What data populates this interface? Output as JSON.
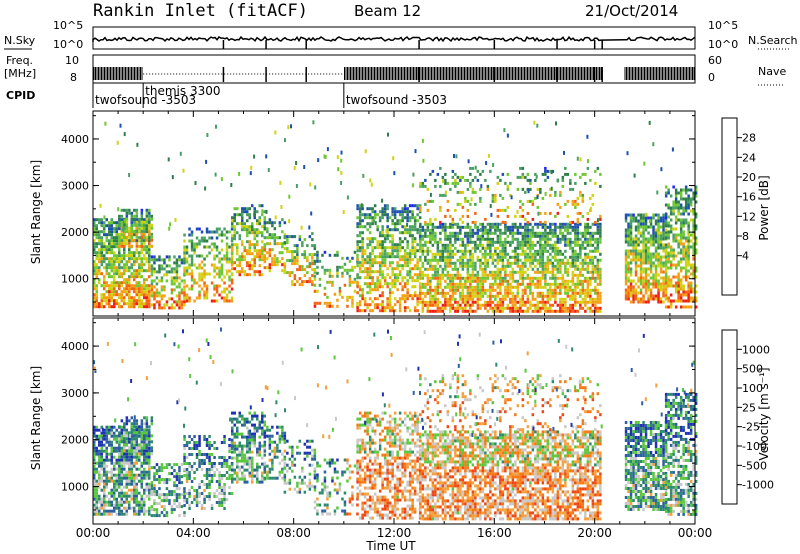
{
  "header": {
    "station": "Rankin Inlet (fitACF)",
    "beam": "Beam 12",
    "date": "21/Oct/2014"
  },
  "status_panel": {
    "nsky_label": "N.Sky",
    "nsky_ticks": [
      "10^5",
      "10^0"
    ],
    "nsearch_label": "N.Search",
    "nsearch_ticks": [
      "10^5",
      "10^0"
    ],
    "freq_label": "Freq.",
    "freq_unit": "[MHz]",
    "freq_ticks": [
      "10",
      "8"
    ],
    "nave_label": "Nave",
    "nave_ticks": [
      "60",
      "0"
    ],
    "cpid_label": "CPID",
    "cpid_segments": [
      {
        "name": "twofsound -3503",
        "start": 0.0,
        "end": 2.0
      },
      {
        "name": "themis 3300",
        "start": 2.0,
        "end": 10.0
      },
      {
        "name": "twofsound -3503",
        "start": 10.0,
        "end": 24.0
      }
    ],
    "data_gap": [
      20.3,
      21.2
    ]
  },
  "chart_data": [
    {
      "type": "heatmap",
      "name": "power",
      "ylabel": "Slant Range [km]",
      "yticks": [
        1000,
        2000,
        3000,
        4000
      ],
      "ylim": [
        200,
        4600
      ],
      "xlim": [
        0,
        24
      ],
      "colorbar_label": "Power [dB]",
      "colorbar_ticks": [
        "28",
        "24",
        "20",
        "16",
        "12",
        "8",
        "4"
      ],
      "colorbar_levels": [
        0,
        4,
        8,
        12,
        16,
        20,
        24,
        28,
        32
      ],
      "colorbar_colors": [
        "#1e28f0",
        "#1e50b4",
        "#2e7d4a",
        "#4aa064",
        "#6ec832",
        "#d2d214",
        "#f5a014",
        "#f56414",
        "#f01e14"
      ]
    },
    {
      "type": "heatmap",
      "name": "velocity",
      "ylabel": "Slant Range [km]",
      "yticks": [
        1000,
        2000,
        3000,
        4000
      ],
      "ylim": [
        200,
        4600
      ],
      "xlim": [
        0,
        24
      ],
      "xlabel": "Time UT",
      "xticks": [
        "00:00",
        "04:00",
        "08:00",
        "12:00",
        "16:00",
        "20:00",
        "00:00"
      ],
      "colorbar_label": "Velocity [m s⁻¹]",
      "colorbar_ticks": [
        "1000",
        "500",
        "100",
        "25",
        "-25",
        "-100",
        "-500",
        "-1000"
      ],
      "colorbar_colors": [
        "#1e32b4",
        "#2e5fa0",
        "#2e8a6e",
        "#5ac83c",
        "#c8c8c8",
        "#f5a03c",
        "#f57814",
        "#f04614",
        "#f01e14"
      ]
    }
  ]
}
